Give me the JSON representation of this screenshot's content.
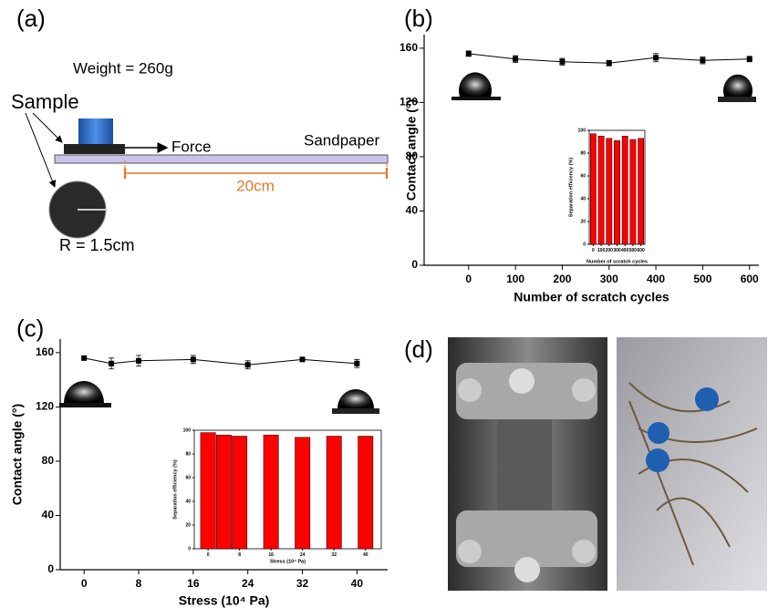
{
  "panel_labels": [
    "(a)",
    "(b)",
    "(c)",
    "(d)"
  ],
  "diagram": {
    "weight": "Weight = 260g",
    "sample": "Sample",
    "force": "Force",
    "sandpaper": "Sandpaper",
    "length": "20cm",
    "radius": "R = 1.5cm"
  },
  "chart_data": [
    {
      "type": "line",
      "x": [
        0,
        100,
        200,
        300,
        400,
        500,
        600
      ],
      "values": [
        156,
        152,
        150,
        149,
        153,
        151,
        152
      ],
      "errors": [
        2,
        2.5,
        2.5,
        2,
        3,
        2.5,
        2
      ],
      "color": "#000000",
      "xlim": [
        -95,
        620
      ],
      "xticks": [
        0,
        100,
        200,
        300,
        400,
        500,
        600
      ],
      "ylim": [
        0,
        170
      ],
      "yticks": [
        0,
        40,
        80,
        120,
        160
      ],
      "xlabel": "Number of scratch cycles",
      "ylabel": "Contact angle (°)"
    },
    {
      "type": "bar",
      "categories": [
        "0",
        "100",
        "200",
        "300",
        "400",
        "500",
        "600"
      ],
      "values": [
        97,
        95,
        93,
        91,
        95,
        92,
        93
      ],
      "color": "#ff0000",
      "ylim": [
        0,
        100
      ],
      "yticks": [
        0,
        20,
        40,
        60,
        80,
        100
      ],
      "xlabel": "Number of scratch cycles",
      "ylabel": "Separation efficiency (%)"
    },
    {
      "type": "line",
      "x": [
        0,
        4,
        8,
        16,
        24,
        32,
        40
      ],
      "values": [
        156,
        152,
        154,
        155,
        151,
        155,
        152
      ],
      "errors": [
        1.5,
        4,
        4,
        3,
        3,
        1.5,
        3
      ],
      "color": "#000000",
      "xlim": [
        -3.5,
        44.5
      ],
      "xticks": [
        0,
        8,
        16,
        24,
        32,
        40
      ],
      "ylim": [
        0,
        170
      ],
      "yticks": [
        0,
        40,
        80,
        120,
        160
      ],
      "xlabel": "Stress (10⁴ Pa)",
      "ylabel": "Contact angle (°)"
    },
    {
      "type": "bar",
      "x": [
        0,
        4,
        8,
        16,
        24,
        32,
        40
      ],
      "values": [
        98,
        96,
        95,
        96,
        94,
        95,
        95
      ],
      "color": "#ff0000",
      "xlim": [
        -3.5,
        44
      ],
      "xticks": [
        0,
        8,
        16,
        24,
        32,
        40
      ],
      "ylim": [
        0,
        100
      ],
      "yticks": [
        0,
        20,
        40,
        60,
        80,
        100
      ],
      "xlabel": "Stress (10⁴ Pa)",
      "ylabel": "Separation efficiency (%)"
    }
  ]
}
